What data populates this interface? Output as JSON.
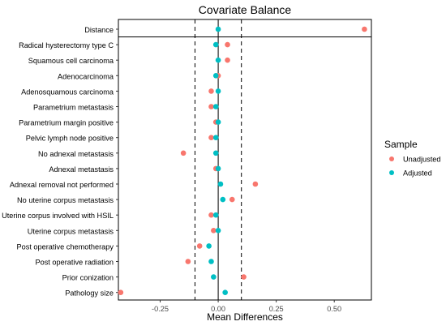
{
  "chart_data": {
    "type": "scatter",
    "title": "Covariate Balance",
    "xlabel": "Mean Differences",
    "ylabel": "",
    "xlim": [
      -0.43,
      0.66
    ],
    "x_ticks": [
      -0.25,
      0.0,
      0.25,
      0.5
    ],
    "x_tick_labels": [
      "-0.25",
      "0.00",
      "0.25",
      "0.50"
    ],
    "reference_lines": {
      "solid": [
        0.0
      ],
      "dashed": [
        -0.1,
        0.1
      ]
    },
    "grid": false,
    "legend_position": "right",
    "legend_title": "Sample",
    "categories": [
      "Distance",
      "Radical hysterectomy type C",
      "Squamous cell carcinoma",
      "Adenocarcinoma",
      "Adenosquamous carcinoma",
      "Parametrium metastasis",
      "Parametrium margin positive",
      "Pelvic lymph node positive",
      "No adnexal metastasis",
      "Adnexal metastasis",
      "Adnexal removal not performed",
      "No uterine corpus metastasis",
      "Uterine corpus involved with HSIL",
      "Uterine corpus metastasis",
      "Post operative chemotherapy",
      "Post operative radiation",
      "Prior conization",
      "Pathology size"
    ],
    "series": [
      {
        "name": "Unadjusted",
        "color": "#F8766D",
        "values": [
          0.63,
          0.04,
          0.04,
          0.0,
          -0.03,
          -0.03,
          -0.01,
          -0.03,
          -0.15,
          -0.01,
          0.16,
          0.06,
          -0.03,
          -0.02,
          -0.08,
          -0.13,
          0.11,
          -0.42
        ]
      },
      {
        "name": "Adjusted",
        "color": "#00BFC4",
        "values": [
          0.0,
          -0.01,
          0.0,
          -0.01,
          0.0,
          -0.01,
          0.0,
          -0.01,
          -0.01,
          0.0,
          0.01,
          0.02,
          -0.01,
          0.0,
          -0.04,
          -0.03,
          -0.02,
          0.03
        ]
      }
    ]
  },
  "colors": {
    "panel_border": "#000000",
    "reference_line": "#000000",
    "text": "#000000",
    "axis_text": "#4d4d4d"
  }
}
